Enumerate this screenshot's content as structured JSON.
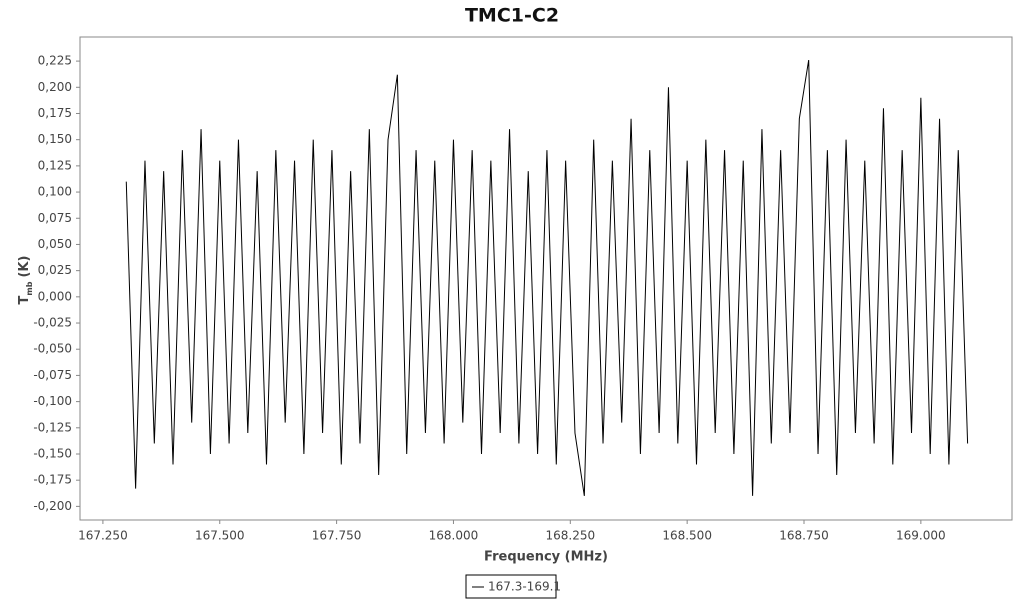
{
  "chart_data": {
    "type": "line",
    "title": "TMC1-C2",
    "x_label": "Frequency (MHz)",
    "y_label": {
      "main": "T",
      "sub": "mb",
      "unit": "(K)"
    },
    "xlim": [
      167.201,
      169.195
    ],
    "ylim": [
      -0.213,
      0.248
    ],
    "grid": false,
    "xticks": [
      {
        "value": 167.25,
        "label": "167.250"
      },
      {
        "value": 167.5,
        "label": "167.500"
      },
      {
        "value": 167.75,
        "label": "167.750"
      },
      {
        "value": 168,
        "label": "168.000"
      },
      {
        "value": 168.25,
        "label": "168.250"
      },
      {
        "value": 168.5,
        "label": "168.500"
      },
      {
        "value": 168.75,
        "label": "168.750"
      },
      {
        "value": 169,
        "label": "169.000"
      }
    ],
    "yticks": [
      {
        "value": -0.2,
        "label": "-0,200"
      },
      {
        "value": -0.175,
        "label": "-0,175"
      },
      {
        "value": -0.15,
        "label": "-0,150"
      },
      {
        "value": -0.125,
        "label": "-0,125"
      },
      {
        "value": -0.1,
        "label": "-0,100"
      },
      {
        "value": -0.075,
        "label": "-0,075"
      },
      {
        "value": -0.05,
        "label": "-0,050"
      },
      {
        "value": -0.025,
        "label": "-0,025"
      },
      {
        "value": 0,
        "label": "0,000"
      },
      {
        "value": 0.025,
        "label": "0,025"
      },
      {
        "value": 0.05,
        "label": "0,050"
      },
      {
        "value": 0.075,
        "label": "0,075"
      },
      {
        "value": 0.1,
        "label": "0,100"
      },
      {
        "value": 0.125,
        "label": "0,125"
      },
      {
        "value": 0.15,
        "label": "0,150"
      },
      {
        "value": 0.175,
        "label": "0,175"
      },
      {
        "value": 0.2,
        "label": "0,200"
      },
      {
        "value": 0.225,
        "label": "0,225"
      }
    ],
    "x": [
      167.3,
      167.32,
      167.34,
      167.36,
      167.38,
      167.4,
      167.42,
      167.44,
      167.46,
      167.48,
      167.5,
      167.52,
      167.54,
      167.56,
      167.58,
      167.6,
      167.62,
      167.64,
      167.66,
      167.68,
      167.7,
      167.72,
      167.74,
      167.76,
      167.78,
      167.8,
      167.82,
      167.84,
      167.86,
      167.88,
      167.9,
      167.92,
      167.94,
      167.96,
      167.98,
      168.0,
      168.02,
      168.04,
      168.06,
      168.08,
      168.1,
      168.12,
      168.14,
      168.16,
      168.18,
      168.2,
      168.22,
      168.24,
      168.26,
      168.28,
      168.3,
      168.32,
      168.34,
      168.36,
      168.38,
      168.4,
      168.42,
      168.44,
      168.46,
      168.48,
      168.5,
      168.52,
      168.54,
      168.56,
      168.58,
      168.6,
      168.62,
      168.64,
      168.66,
      168.68,
      168.7,
      168.72,
      168.74,
      168.76,
      168.78,
      168.8,
      168.82,
      168.84,
      168.86,
      168.88,
      168.9,
      168.92,
      168.94,
      168.96,
      168.98,
      169.0,
      169.02,
      169.04,
      169.06,
      169.08,
      169.1
    ],
    "series": [
      {
        "name": "167.3-169.1",
        "color": "#000000",
        "values": [
          0.11,
          -0.183,
          0.13,
          -0.14,
          0.12,
          -0.16,
          0.14,
          -0.12,
          0.16,
          -0.15,
          0.13,
          -0.14,
          0.15,
          -0.13,
          0.12,
          -0.16,
          0.14,
          -0.12,
          0.13,
          -0.15,
          0.15,
          -0.13,
          0.14,
          -0.16,
          0.12,
          -0.14,
          0.16,
          -0.17,
          0.15,
          0.212,
          -0.15,
          0.14,
          -0.13,
          0.13,
          -0.14,
          0.15,
          -0.12,
          0.14,
          -0.15,
          0.13,
          -0.13,
          0.16,
          -0.14,
          0.12,
          -0.15,
          0.14,
          -0.16,
          0.13,
          -0.13,
          -0.19,
          0.15,
          -0.14,
          0.13,
          -0.12,
          0.17,
          -0.15,
          0.14,
          -0.13,
          0.2,
          -0.14,
          0.13,
          -0.16,
          0.15,
          -0.13,
          0.14,
          -0.15,
          0.13,
          -0.19,
          0.16,
          -0.14,
          0.14,
          -0.13,
          0.17,
          0.226,
          -0.15,
          0.14,
          -0.17,
          0.15,
          -0.13,
          0.13,
          -0.14,
          0.18,
          -0.16,
          0.14,
          -0.13,
          0.19,
          -0.15,
          0.17,
          -0.16,
          0.14,
          -0.14
        ]
      }
    ]
  }
}
